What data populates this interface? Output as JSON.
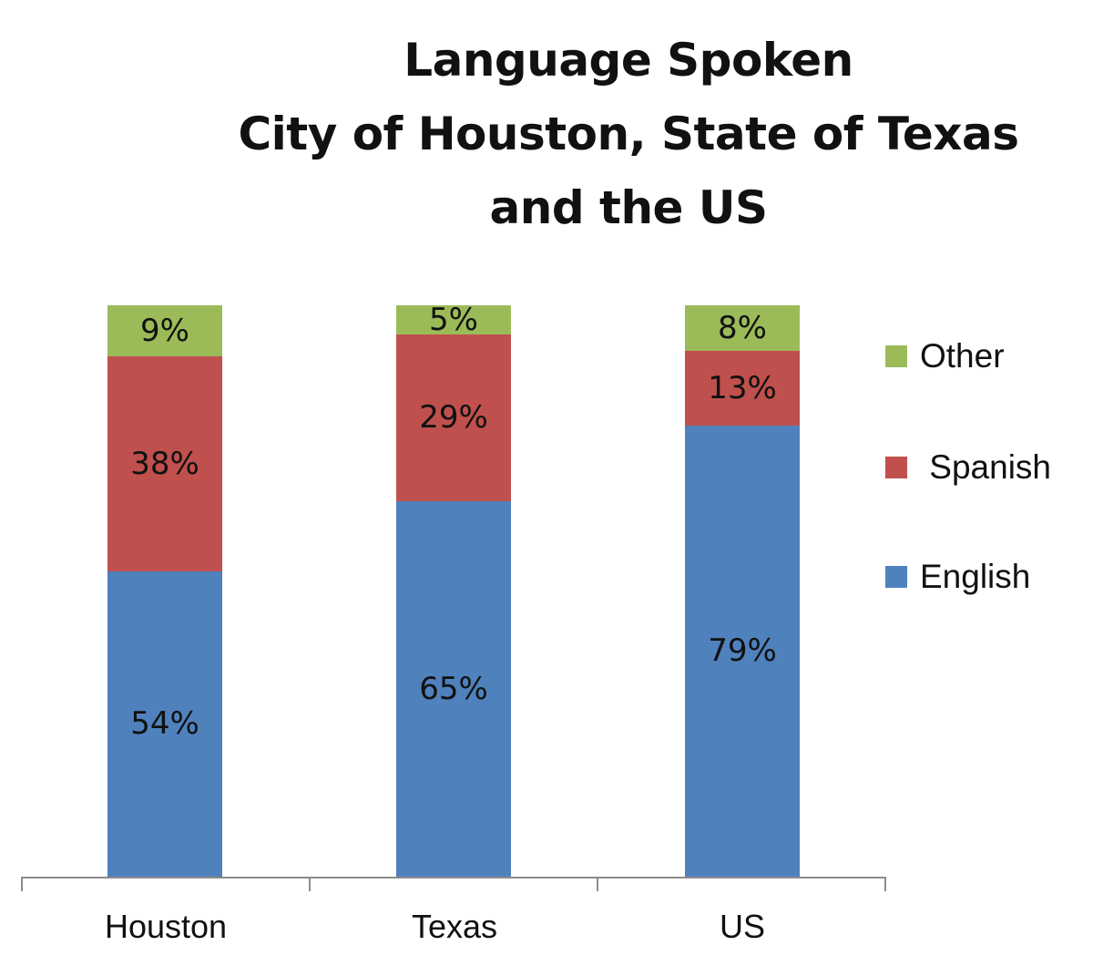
{
  "chart_data": {
    "type": "bar",
    "stacked": true,
    "title": "Language Spoken City of Houston, State of Texas and the US",
    "title_lines": [
      "Language Spoken",
      "City of Houston, State of Texas",
      "and the US"
    ],
    "categories": [
      "Houston",
      "Texas",
      "US"
    ],
    "series": [
      {
        "name": "English",
        "color": "#4f81bd",
        "values": [
          54,
          65,
          79
        ],
        "labels": [
          "54%",
          "65%",
          "79%"
        ]
      },
      {
        "name": "Spanish",
        "color": "#c0504d",
        "values": [
          38,
          29,
          13
        ],
        "labels": [
          "38%",
          "29%",
          "13%"
        ]
      },
      {
        "name": "Other",
        "color": "#9bbb59",
        "values": [
          9,
          5,
          8
        ],
        "labels": [
          "9%",
          "5%",
          "8%"
        ]
      }
    ],
    "xlabel": "",
    "ylabel": "",
    "ylim": [
      0,
      100
    ],
    "grid": false,
    "y_axis_visible": false,
    "data_labels": true,
    "legend_position": "right",
    "legend_order": [
      "Other",
      "Spanish",
      "English"
    ]
  },
  "legend": [
    {
      "label": "Other",
      "color": "#9bbb59"
    },
    {
      "label": " Spanish",
      "color": "#c0504d"
    },
    {
      "label": "English",
      "color": "#4f81bd"
    }
  ]
}
